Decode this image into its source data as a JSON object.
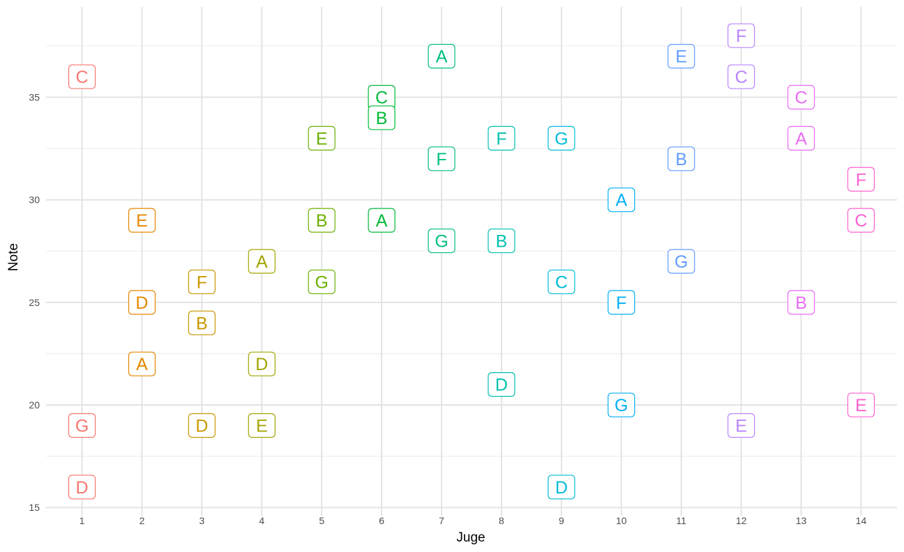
{
  "chart_data": {
    "type": "scatter",
    "xlabel": "Juge",
    "ylabel": "Note",
    "x_ticks": [
      "1",
      "2",
      "3",
      "4",
      "5",
      "6",
      "7",
      "8",
      "9",
      "10",
      "11",
      "12",
      "13",
      "14"
    ],
    "y_ticks": [
      "15",
      "20",
      "25",
      "30",
      "35"
    ],
    "xlim": [
      0.4,
      14.6
    ],
    "ylim": [
      14.6,
      39.4
    ],
    "grid": true,
    "legend": "none",
    "points": [
      {
        "x": 1,
        "y": 36,
        "label": "C"
      },
      {
        "x": 1,
        "y": 19,
        "label": "G"
      },
      {
        "x": 1,
        "y": 16,
        "label": "D"
      },
      {
        "x": 2,
        "y": 29,
        "label": "E"
      },
      {
        "x": 2,
        "y": 25,
        "label": "D"
      },
      {
        "x": 2,
        "y": 22,
        "label": "A"
      },
      {
        "x": 3,
        "y": 26,
        "label": "F"
      },
      {
        "x": 3,
        "y": 24,
        "label": "B"
      },
      {
        "x": 3,
        "y": 19,
        "label": "D"
      },
      {
        "x": 4,
        "y": 27,
        "label": "A"
      },
      {
        "x": 4,
        "y": 22,
        "label": "D"
      },
      {
        "x": 4,
        "y": 19,
        "label": "E"
      },
      {
        "x": 5,
        "y": 33,
        "label": "E"
      },
      {
        "x": 5,
        "y": 29,
        "label": "B"
      },
      {
        "x": 5,
        "y": 26,
        "label": "G"
      },
      {
        "x": 6,
        "y": 35,
        "label": "C"
      },
      {
        "x": 6,
        "y": 34,
        "label": "B"
      },
      {
        "x": 6,
        "y": 29,
        "label": "A"
      },
      {
        "x": 7,
        "y": 37,
        "label": "A"
      },
      {
        "x": 7,
        "y": 32,
        "label": "F"
      },
      {
        "x": 7,
        "y": 28,
        "label": "G"
      },
      {
        "x": 8,
        "y": 33,
        "label": "F"
      },
      {
        "x": 8,
        "y": 28,
        "label": "B"
      },
      {
        "x": 8,
        "y": 21,
        "label": "D"
      },
      {
        "x": 9,
        "y": 33,
        "label": "G"
      },
      {
        "x": 9,
        "y": 26,
        "label": "C"
      },
      {
        "x": 9,
        "y": 16,
        "label": "D"
      },
      {
        "x": 10,
        "y": 30,
        "label": "A"
      },
      {
        "x": 10,
        "y": 25,
        "label": "F"
      },
      {
        "x": 10,
        "y": 20,
        "label": "G"
      },
      {
        "x": 11,
        "y": 37,
        "label": "E"
      },
      {
        "x": 11,
        "y": 32,
        "label": "B"
      },
      {
        "x": 11,
        "y": 27,
        "label": "G"
      },
      {
        "x": 12,
        "y": 38,
        "label": "F"
      },
      {
        "x": 12,
        "y": 36,
        "label": "C"
      },
      {
        "x": 12,
        "y": 19,
        "label": "E"
      },
      {
        "x": 13,
        "y": 35,
        "label": "C"
      },
      {
        "x": 13,
        "y": 33,
        "label": "A"
      },
      {
        "x": 13,
        "y": 25,
        "label": "B"
      },
      {
        "x": 14,
        "y": 31,
        "label": "F"
      },
      {
        "x": 14,
        "y": 29,
        "label": "C"
      },
      {
        "x": 14,
        "y": 20,
        "label": "E"
      }
    ],
    "juge_colors": [
      "#F8766D",
      "#E58700",
      "#C99800",
      "#A3A500",
      "#6BB100",
      "#00BA38",
      "#00BF7D",
      "#00C0AF",
      "#00BCD8",
      "#00B0F6",
      "#619CFF",
      "#B983FF",
      "#E76BF3",
      "#FD61D1",
      "#FF67A4"
    ]
  }
}
